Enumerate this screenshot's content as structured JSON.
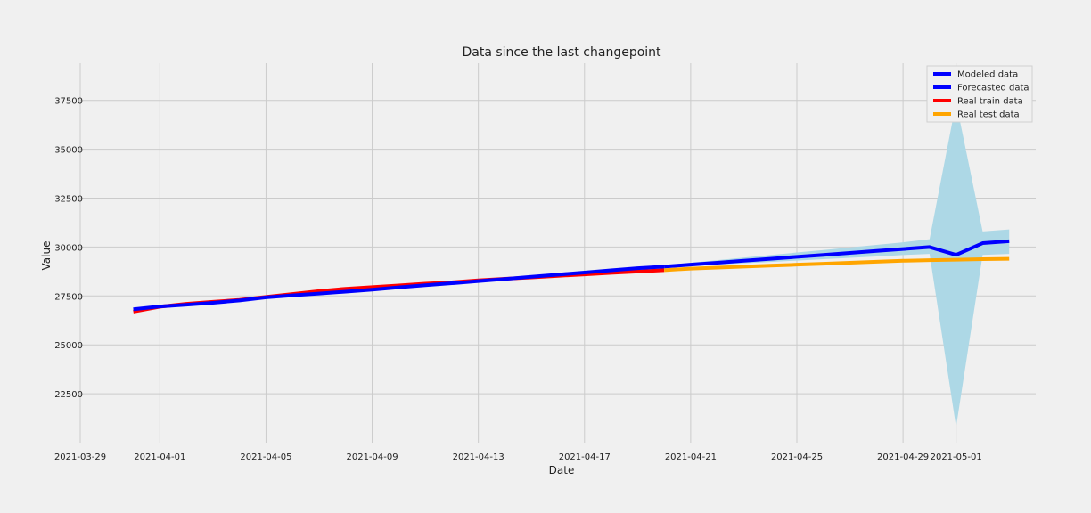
{
  "chart_data": {
    "type": "line",
    "title": "Data since the last changepoint",
    "xlabel": "Date",
    "ylabel": "Value",
    "xlim": [
      "2021-03-29",
      "2021-05-04"
    ],
    "ylim": [
      20000,
      39400
    ],
    "grid": true,
    "legend_position": "top-right",
    "x_ticks": [
      "2021-03-29",
      "2021-04-01",
      "2021-04-05",
      "2021-04-09",
      "2021-04-13",
      "2021-04-17",
      "2021-04-21",
      "2021-04-25",
      "2021-04-29",
      "2021-05-01"
    ],
    "y_ticks": [
      22500,
      25000,
      27500,
      30000,
      32500,
      35000,
      37500
    ],
    "series": [
      {
        "name": "Modeled data",
        "color": "#0000ff",
        "points": [
          [
            "2021-03-31",
            26820
          ],
          [
            "2021-04-01",
            26960
          ],
          [
            "2021-04-02",
            27050
          ],
          [
            "2021-04-03",
            27150
          ],
          [
            "2021-04-04",
            27270
          ],
          [
            "2021-04-05",
            27430
          ],
          [
            "2021-04-06",
            27530
          ],
          [
            "2021-04-07",
            27620
          ],
          [
            "2021-04-08",
            27720
          ],
          [
            "2021-04-09",
            27820
          ],
          [
            "2021-04-10",
            27940
          ],
          [
            "2021-04-11",
            28050
          ],
          [
            "2021-04-12",
            28150
          ],
          [
            "2021-04-13",
            28260
          ],
          [
            "2021-04-14",
            28370
          ],
          [
            "2021-04-15",
            28480
          ],
          [
            "2021-04-16",
            28590
          ],
          [
            "2021-04-17",
            28700
          ],
          [
            "2021-04-18",
            28810
          ],
          [
            "2021-04-19",
            28920
          ],
          [
            "2021-04-20",
            29000
          ]
        ]
      },
      {
        "name": "Forecasted data",
        "color": "#0000ff",
        "points": [
          [
            "2021-04-20",
            29000
          ],
          [
            "2021-04-21",
            29100
          ],
          [
            "2021-04-22",
            29200
          ],
          [
            "2021-04-23",
            29300
          ],
          [
            "2021-04-24",
            29400
          ],
          [
            "2021-04-25",
            29500
          ],
          [
            "2021-04-26",
            29600
          ],
          [
            "2021-04-27",
            29700
          ],
          [
            "2021-04-28",
            29800
          ],
          [
            "2021-04-29",
            29900
          ],
          [
            "2021-04-30",
            30000
          ],
          [
            "2021-05-01",
            29600
          ],
          [
            "2021-05-02",
            30200
          ],
          [
            "2021-05-03",
            30300
          ]
        ]
      },
      {
        "name": "Real train data",
        "color": "#ff0000",
        "points": [
          [
            "2021-03-31",
            26700
          ],
          [
            "2021-04-01",
            26950
          ],
          [
            "2021-04-02",
            27100
          ],
          [
            "2021-04-03",
            27200
          ],
          [
            "2021-04-04",
            27300
          ],
          [
            "2021-04-05",
            27450
          ],
          [
            "2021-04-06",
            27600
          ],
          [
            "2021-04-07",
            27750
          ],
          [
            "2021-04-08",
            27870
          ],
          [
            "2021-04-09",
            27950
          ],
          [
            "2021-04-10",
            28040
          ],
          [
            "2021-04-11",
            28130
          ],
          [
            "2021-04-12",
            28200
          ],
          [
            "2021-04-13",
            28300
          ],
          [
            "2021-04-14",
            28380
          ],
          [
            "2021-04-15",
            28450
          ],
          [
            "2021-04-16",
            28530
          ],
          [
            "2021-04-17",
            28600
          ],
          [
            "2021-04-18",
            28680
          ],
          [
            "2021-04-19",
            28750
          ],
          [
            "2021-04-20",
            28820
          ]
        ]
      },
      {
        "name": "Real test data",
        "color": "#ffa500",
        "points": [
          [
            "2021-04-20",
            28820
          ],
          [
            "2021-04-21",
            28900
          ],
          [
            "2021-04-22",
            28950
          ],
          [
            "2021-04-23",
            29000
          ],
          [
            "2021-04-24",
            29050
          ],
          [
            "2021-04-25",
            29100
          ],
          [
            "2021-04-26",
            29150
          ],
          [
            "2021-04-27",
            29200
          ],
          [
            "2021-04-28",
            29250
          ],
          [
            "2021-04-29",
            29300
          ],
          [
            "2021-04-30",
            29330
          ],
          [
            "2021-05-01",
            29350
          ],
          [
            "2021-05-02",
            29380
          ],
          [
            "2021-05-03",
            29400
          ]
        ]
      }
    ],
    "confidence_band": {
      "color": "#add8e6",
      "points": [
        [
          "2021-04-20",
          28950,
          29050
        ],
        [
          "2021-04-21",
          29020,
          29200
        ],
        [
          "2021-04-22",
          29100,
          29330
        ],
        [
          "2021-04-23",
          29170,
          29460
        ],
        [
          "2021-04-24",
          29240,
          29590
        ],
        [
          "2021-04-25",
          29310,
          29720
        ],
        [
          "2021-04-26",
          29380,
          29850
        ],
        [
          "2021-04-27",
          29450,
          29980
        ],
        [
          "2021-04-28",
          29520,
          30110
        ],
        [
          "2021-04-29",
          29590,
          30240
        ],
        [
          "2021-04-30",
          29650,
          30400
        ],
        [
          "2021-05-01",
          20800,
          37400
        ],
        [
          "2021-05-02",
          29600,
          30800
        ],
        [
          "2021-05-03",
          29650,
          30900
        ]
      ]
    }
  }
}
